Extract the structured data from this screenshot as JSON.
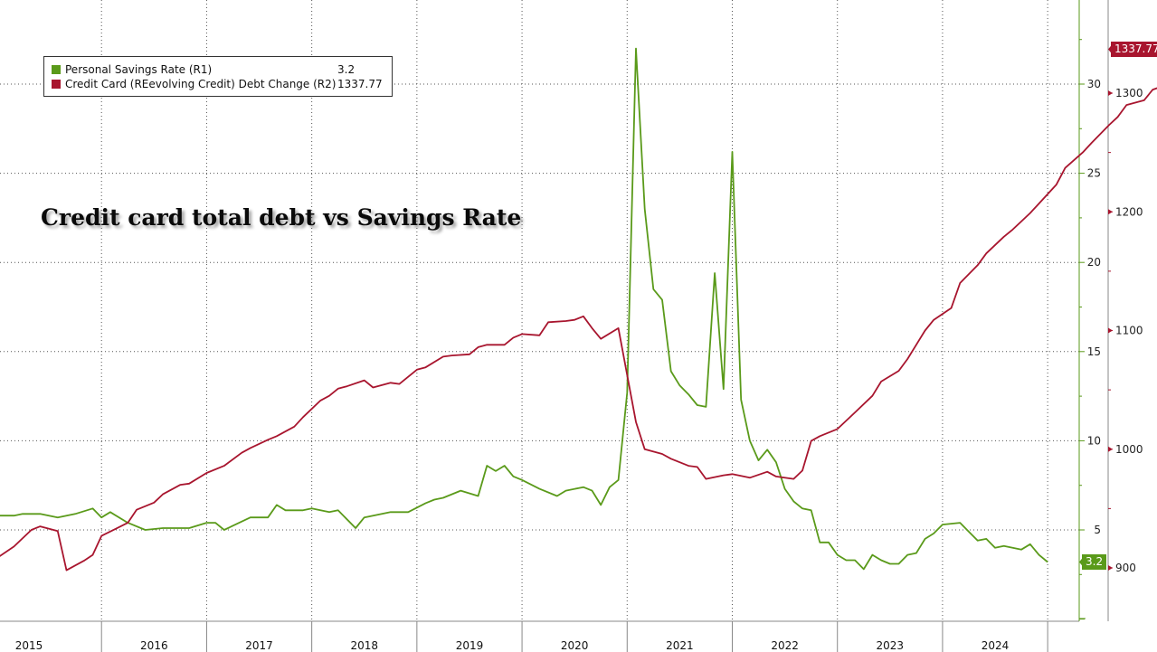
{
  "chart_data": {
    "type": "line",
    "title": "Credit card total debt vs Savings Rate",
    "x_axis": {
      "years": [
        "2015",
        "2016",
        "2017",
        "2018",
        "2019",
        "2020",
        "2021",
        "2022",
        "2023",
        "2024"
      ]
    },
    "y_axis_r1": {
      "ticks": [
        "5",
        "10",
        "15",
        "20",
        "25",
        "30"
      ],
      "range": [
        0,
        35
      ]
    },
    "y_axis_r2": {
      "ticks": [
        "900",
        "1000",
        "1100",
        "1200",
        "1300"
      ],
      "range": [
        810,
        1345
      ]
    },
    "grid": true,
    "legend_placement": "top-left",
    "series": [
      {
        "name": "Personal Savings Rate (R1)",
        "last_value": "3.2",
        "color": "#5a9a1a",
        "axis": "r1",
        "points": [
          [
            "2015-01",
            5.8
          ],
          [
            "2015-03",
            5.8
          ],
          [
            "2015-04",
            5.9
          ],
          [
            "2015-06",
            5.9
          ],
          [
            "2015-08",
            5.7
          ],
          [
            "2015-10",
            5.9
          ],
          [
            "2015-12",
            6.2
          ],
          [
            "2016-01",
            5.7
          ],
          [
            "2016-02",
            6.0
          ],
          [
            "2016-04",
            5.4
          ],
          [
            "2016-06",
            5.0
          ],
          [
            "2016-08",
            5.1
          ],
          [
            "2016-11",
            5.1
          ],
          [
            "2017-01",
            5.4
          ],
          [
            "2017-02",
            5.4
          ],
          [
            "2017-03",
            5.0
          ],
          [
            "2017-06",
            5.7
          ],
          [
            "2017-08",
            5.7
          ],
          [
            "2017-09",
            6.4
          ],
          [
            "2017-10",
            6.1
          ],
          [
            "2017-12",
            6.1
          ],
          [
            "2018-01",
            6.2
          ],
          [
            "2018-03",
            6.0
          ],
          [
            "2018-04",
            6.1
          ],
          [
            "2018-06",
            5.1
          ],
          [
            "2018-07",
            5.7
          ],
          [
            "2018-10",
            6.0
          ],
          [
            "2018-12",
            6.0
          ],
          [
            "2019-02",
            6.5
          ],
          [
            "2019-03",
            6.7
          ],
          [
            "2019-04",
            6.8
          ],
          [
            "2019-06",
            7.2
          ],
          [
            "2019-08",
            6.9
          ],
          [
            "2019-09",
            8.6
          ],
          [
            "2019-10",
            8.3
          ],
          [
            "2019-11",
            8.6
          ],
          [
            "2019-12",
            8.0
          ],
          [
            "2020-01",
            7.8
          ],
          [
            "2020-03",
            7.3
          ],
          [
            "2020-05",
            6.9
          ],
          [
            "2020-06",
            7.2
          ],
          [
            "2020-08",
            7.4
          ],
          [
            "2020-09",
            7.2
          ],
          [
            "2020-10",
            6.4
          ],
          [
            "2020-11",
            7.4
          ],
          [
            "2020-12",
            7.8
          ],
          [
            "2021-01",
            12.7
          ],
          [
            "2021-02",
            32.0
          ],
          [
            "2021-03",
            23.0
          ],
          [
            "2021-04",
            18.5
          ],
          [
            "2021-05",
            17.9
          ],
          [
            "2021-06",
            13.9
          ],
          [
            "2021-07",
            13.1
          ],
          [
            "2021-08",
            12.6
          ],
          [
            "2021-09",
            12.0
          ],
          [
            "2021-10",
            11.9
          ],
          [
            "2021-11",
            19.4
          ],
          [
            "2021-12",
            12.9
          ],
          [
            "2022-01",
            26.2
          ],
          [
            "2022-02",
            12.3
          ],
          [
            "2022-03",
            10.0
          ],
          [
            "2022-04",
            8.9
          ],
          [
            "2022-05",
            9.5
          ],
          [
            "2022-06",
            8.8
          ],
          [
            "2022-07",
            7.3
          ],
          [
            "2022-08",
            6.6
          ],
          [
            "2022-09",
            6.2
          ],
          [
            "2022-10",
            6.1
          ],
          [
            "2022-11",
            4.3
          ],
          [
            "2022-12",
            4.3
          ],
          [
            "2023-01",
            3.6
          ],
          [
            "2023-02",
            3.3
          ],
          [
            "2023-03",
            3.3
          ],
          [
            "2023-04",
            2.8
          ],
          [
            "2023-05",
            3.6
          ],
          [
            "2023-06",
            3.3
          ],
          [
            "2023-07",
            3.1
          ],
          [
            "2023-08",
            3.1
          ],
          [
            "2023-09",
            3.6
          ],
          [
            "2023-10",
            3.7
          ],
          [
            "2023-11",
            4.5
          ],
          [
            "2023-12",
            4.8
          ],
          [
            "2024-01",
            5.3
          ],
          [
            "2024-03",
            5.4
          ],
          [
            "2024-04",
            4.9
          ],
          [
            "2024-05",
            4.4
          ],
          [
            "2024-06",
            4.5
          ],
          [
            "2024-07",
            4.0
          ],
          [
            "2024-08",
            4.1
          ],
          [
            "2024-10",
            3.9
          ],
          [
            "2024-11",
            4.2
          ],
          [
            "2024-12",
            3.6
          ],
          [
            "2025-01",
            3.2
          ]
        ]
      },
      {
        "name": "Credit Card (REevolving Credit) Debt Change (R2)",
        "last_value": "1337.77",
        "color": "#a8152e",
        "axis": "r2",
        "points": [
          [
            "2015-01",
            908
          ],
          [
            "2015-03",
            918
          ],
          [
            "2015-05",
            932
          ],
          [
            "2015-06",
            935
          ],
          [
            "2015-08",
            931
          ],
          [
            "2015-09",
            898
          ],
          [
            "2015-11",
            906
          ],
          [
            "2015-12",
            911
          ],
          [
            "2016-01",
            927
          ],
          [
            "2016-04",
            938
          ],
          [
            "2016-05",
            949
          ],
          [
            "2016-07",
            955
          ],
          [
            "2016-08",
            962
          ],
          [
            "2016-10",
            970
          ],
          [
            "2016-11",
            971
          ],
          [
            "2017-01",
            980
          ],
          [
            "2017-03",
            986
          ],
          [
            "2017-05",
            997
          ],
          [
            "2017-06",
            1001
          ],
          [
            "2017-08",
            1008
          ],
          [
            "2017-09",
            1011
          ],
          [
            "2017-11",
            1019
          ],
          [
            "2017-12",
            1027
          ],
          [
            "2018-02",
            1041
          ],
          [
            "2018-03",
            1045
          ],
          [
            "2018-04",
            1051
          ],
          [
            "2018-05",
            1053
          ],
          [
            "2018-07",
            1058
          ],
          [
            "2018-08",
            1052
          ],
          [
            "2018-10",
            1056
          ],
          [
            "2018-11",
            1055
          ],
          [
            "2019-01",
            1067
          ],
          [
            "2019-02",
            1069
          ],
          [
            "2019-04",
            1078
          ],
          [
            "2019-05",
            1079
          ],
          [
            "2019-07",
            1080
          ],
          [
            "2019-08",
            1086
          ],
          [
            "2019-09",
            1088
          ],
          [
            "2019-11",
            1088
          ],
          [
            "2019-12",
            1094
          ],
          [
            "2020-01",
            1097
          ],
          [
            "2020-03",
            1096
          ],
          [
            "2020-04",
            1107
          ],
          [
            "2020-06",
            1108
          ],
          [
            "2020-07",
            1109
          ],
          [
            "2020-08",
            1112
          ],
          [
            "2020-09",
            1102
          ],
          [
            "2020-10",
            1093
          ],
          [
            "2020-12",
            1102
          ],
          [
            "2021-02",
            1023
          ],
          [
            "2021-03",
            1000
          ],
          [
            "2021-05",
            996
          ],
          [
            "2021-06",
            992
          ],
          [
            "2021-08",
            986
          ],
          [
            "2021-09",
            985
          ],
          [
            "2021-10",
            975
          ],
          [
            "2021-12",
            978
          ],
          [
            "2022-01",
            979
          ],
          [
            "2022-03",
            976
          ],
          [
            "2022-05",
            981
          ],
          [
            "2022-06",
            977
          ],
          [
            "2022-08",
            975
          ],
          [
            "2022-09",
            982
          ],
          [
            "2022-10",
            1007
          ],
          [
            "2022-11",
            1011
          ],
          [
            "2023-01",
            1017
          ],
          [
            "2023-03",
            1031
          ],
          [
            "2023-05",
            1045
          ],
          [
            "2023-06",
            1057
          ],
          [
            "2023-08",
            1066
          ],
          [
            "2023-09",
            1076
          ],
          [
            "2023-11",
            1100
          ],
          [
            "2023-12",
            1109
          ],
          [
            "2024-02",
            1119
          ],
          [
            "2024-03",
            1140
          ],
          [
            "2024-05",
            1155
          ],
          [
            "2024-06",
            1165
          ],
          [
            "2024-08",
            1179
          ],
          [
            "2024-09",
            1185
          ],
          [
            "2024-11",
            1199
          ],
          [
            "2024-12",
            1207
          ],
          [
            "2025-02",
            1223
          ],
          [
            "2025-03",
            1237
          ],
          [
            "2025-05",
            1250
          ],
          [
            "2025-06",
            1258
          ],
          [
            "2025-08",
            1273
          ],
          [
            "2025-09",
            1280
          ],
          [
            "2025-10",
            1290
          ],
          [
            "2025-12",
            1294
          ],
          [
            "2026-01",
            1303
          ],
          [
            "2026-03",
            1308
          ],
          [
            "2026-04",
            1316
          ],
          [
            "2026-06",
            1332
          ],
          [
            "2026-08",
            1337
          ],
          [
            "2026-11",
            1337
          ]
        ]
      }
    ]
  }
}
